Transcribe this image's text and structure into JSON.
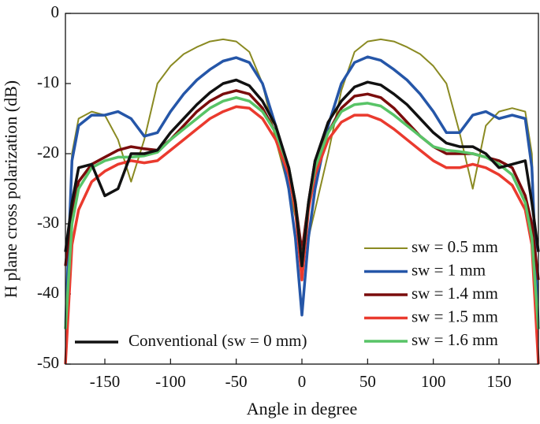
{
  "chart_data": {
    "type": "line",
    "xlabel": "Angle in degree",
    "ylabel": "H plane cross polarization (dB)",
    "x": [
      -180,
      -175,
      -170,
      -160,
      -150,
      -140,
      -130,
      -120,
      -110,
      -100,
      -90,
      -80,
      -70,
      -60,
      -50,
      -40,
      -30,
      -20,
      -10,
      -5,
      0,
      5,
      10,
      20,
      30,
      40,
      50,
      60,
      70,
      80,
      90,
      100,
      110,
      120,
      130,
      140,
      150,
      160,
      170,
      175,
      180
    ],
    "series": [
      {
        "name": "sw = 0.5 mm",
        "color": "#8a8a22",
        "width": 2,
        "values": [
          -45,
          -20,
          -15,
          -14,
          -14.5,
          -18,
          -24,
          -18,
          -10,
          -7.5,
          -5.8,
          -4.8,
          -4,
          -3.7,
          -4,
          -5.5,
          -10,
          -18,
          -25,
          -29,
          -33,
          -32,
          -28,
          -20,
          -11,
          -5.5,
          -4,
          -3.7,
          -4,
          -4.8,
          -5.8,
          -7.5,
          -10,
          -17,
          -25,
          -16,
          -14,
          -13.5,
          -14,
          -20,
          -45
        ]
      },
      {
        "name": "sw = 1 mm",
        "color": "#2556a8",
        "width": 3.5,
        "values": [
          -45,
          -21,
          -16,
          -14.5,
          -14.5,
          -14,
          -15,
          -17.5,
          -17,
          -14,
          -11.5,
          -9.5,
          -8,
          -6.8,
          -6.3,
          -7,
          -10,
          -16,
          -25,
          -32,
          -43,
          -32,
          -25,
          -16,
          -10,
          -7,
          -6.2,
          -6.7,
          -8,
          -9.5,
          -11.5,
          -14,
          -17,
          -17,
          -14.5,
          -14,
          -15,
          -14.5,
          -15,
          -22,
          -45
        ]
      },
      {
        "name": "sw = 1.4 mm",
        "color": "#7a0c0c",
        "width": 3.5,
        "values": [
          -36,
          -28,
          -24,
          -21.5,
          -20.5,
          -19.5,
          -19,
          -19.3,
          -19.5,
          -18,
          -16,
          -14,
          -12.5,
          -11.5,
          -11,
          -11.5,
          -13.5,
          -17,
          -22,
          -27,
          -34,
          -27,
          -21,
          -17,
          -13.5,
          -11.8,
          -11.5,
          -12,
          -13.5,
          -15.5,
          -17.5,
          -19,
          -20,
          -20,
          -20,
          -20.5,
          -21,
          -22,
          -26,
          -30,
          -38
        ]
      },
      {
        "name": "sw = 1.5 mm",
        "color": "#ea3a2e",
        "width": 3.5,
        "values": [
          -50,
          -33,
          -28,
          -24,
          -22.5,
          -21.5,
          -21,
          -21.3,
          -21,
          -19.5,
          -18,
          -16.5,
          -15,
          -14,
          -13.3,
          -13.5,
          -15,
          -18,
          -23,
          -28,
          -38,
          -28,
          -23,
          -18,
          -15.5,
          -14.5,
          -14.5,
          -15.2,
          -16.5,
          -18,
          -19.5,
          -21,
          -22,
          -22,
          -21.5,
          -22,
          -23,
          -24.5,
          -28,
          -33,
          -50
        ]
      },
      {
        "name": "sw = 1.6 mm",
        "color": "#58c467",
        "width": 3.5,
        "values": [
          -45,
          -30,
          -25,
          -22,
          -21,
          -20.5,
          -20.5,
          -20.3,
          -19.8,
          -18,
          -16.5,
          -15,
          -13.5,
          -12.5,
          -12,
          -12.5,
          -14,
          -17,
          -22,
          -27,
          -36,
          -27,
          -22,
          -17,
          -14,
          -13,
          -12.8,
          -13.2,
          -14.5,
          -16,
          -17.5,
          -19,
          -19.5,
          -19.7,
          -20,
          -20.5,
          -21.5,
          -23,
          -27,
          -32,
          -45
        ]
      },
      {
        "name": "Conventional (sw = 0 mm)",
        "color": "#111111",
        "width": 3.5,
        "values": [
          -34,
          -27,
          -22,
          -21.5,
          -26,
          -25,
          -20,
          -20,
          -19.5,
          -17,
          -15,
          -13,
          -11.3,
          -10,
          -9.5,
          -10.3,
          -12.5,
          -16,
          -22,
          -27,
          -36,
          -27,
          -21,
          -15.5,
          -12.5,
          -10.5,
          -9.8,
          -10.2,
          -11.5,
          -13,
          -15,
          -17,
          -18.5,
          -19,
          -19,
          -20,
          -22,
          -21.5,
          -21,
          -27,
          -34
        ]
      }
    ],
    "xlim": [
      -180,
      180
    ],
    "xticks": [
      -150,
      -100,
      -50,
      0,
      50,
      100,
      150
    ],
    "ylim": [
      -50,
      0
    ],
    "yticks": [
      0,
      -10,
      -20,
      -30,
      -40,
      -50
    ]
  }
}
